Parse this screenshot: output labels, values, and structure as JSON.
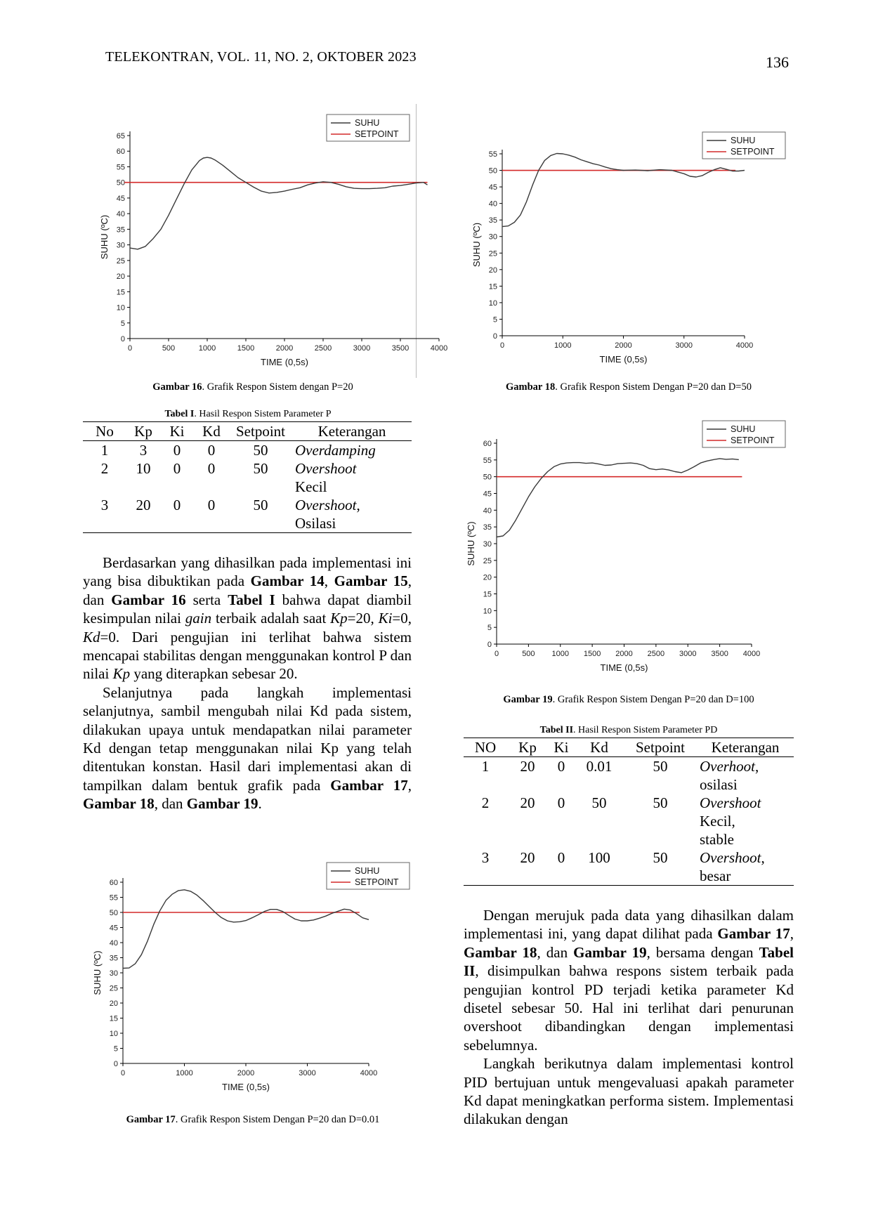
{
  "header": {
    "journal": "TELEKONTRAN, VOL. 11, NO. 2, OKTOBER 2023",
    "page_number": "136"
  },
  "charts": {
    "fig16": {
      "type": "line",
      "xlabel": "TIME (0,5s)",
      "ylabel": "SUHU (ºC)",
      "xlim": [
        0,
        4000
      ],
      "ylim": [
        0,
        65
      ],
      "x_ticks": [
        0,
        500,
        1000,
        1500,
        2000,
        2500,
        3000,
        3500,
        4000
      ],
      "y_ticks": [
        0,
        5,
        10,
        15,
        20,
        25,
        30,
        35,
        40,
        45,
        50,
        55,
        60,
        65
      ],
      "legend": [
        "SUHU",
        "SETPOINT"
      ],
      "setpoint": 50,
      "series": [
        {
          "name": "SUHU",
          "x": [
            0,
            100,
            200,
            300,
            400,
            500,
            600,
            700,
            800,
            900,
            950,
            1000,
            1050,
            1100,
            1200,
            1300,
            1400,
            1500,
            1600,
            1700,
            1800,
            1900,
            2000,
            2100,
            2200,
            2300,
            2400,
            2500,
            2600,
            2700,
            2800,
            2900,
            3000,
            3100,
            3200,
            3300,
            3400,
            3500,
            3600,
            3700,
            3800,
            3850
          ],
          "y": [
            29,
            28.6,
            29.5,
            32,
            35,
            39.5,
            44.5,
            49.5,
            54,
            57,
            57.8,
            58,
            57.8,
            57.2,
            55.5,
            53.5,
            51.5,
            50,
            48.5,
            47.2,
            46.6,
            46.8,
            47.2,
            47.8,
            48.3,
            49.2,
            49.8,
            50.2,
            50,
            49.4,
            48.6,
            48.1,
            48,
            48,
            48.1,
            48.3,
            48.8,
            49,
            49.4,
            49.8,
            50,
            49.2
          ]
        }
      ]
    },
    "fig18": {
      "type": "line",
      "xlabel": "TIME (0,5s)",
      "ylabel": "SUHU (ºC)",
      "xlim": [
        0,
        4000
      ],
      "ylim": [
        0,
        55
      ],
      "x_ticks": [
        0,
        1000,
        2000,
        3000,
        4000
      ],
      "y_ticks": [
        0,
        5,
        10,
        15,
        20,
        25,
        30,
        35,
        40,
        45,
        50,
        55
      ],
      "legend": [
        "SUHU",
        "SETPOINT"
      ],
      "setpoint": 50,
      "series": [
        {
          "name": "SUHU",
          "x": [
            0,
            100,
            200,
            300,
            400,
            500,
            600,
            700,
            800,
            900,
            1000,
            1100,
            1200,
            1300,
            1400,
            1500,
            1600,
            1700,
            1800,
            1900,
            2000,
            2200,
            2400,
            2600,
            2800,
            2900,
            3000,
            3100,
            3200,
            3300,
            3400,
            3500,
            3600,
            3700,
            3800,
            3900,
            4000
          ],
          "y": [
            33,
            33.2,
            34.3,
            36.5,
            40.5,
            45.5,
            50,
            53,
            54.5,
            55.1,
            55,
            54.6,
            54,
            53.2,
            52.6,
            52,
            51.6,
            51,
            50.5,
            50.2,
            50,
            50.1,
            49.9,
            50.2,
            50,
            49.5,
            49,
            48.2,
            48,
            48.4,
            49.4,
            50.2,
            50.8,
            50.3,
            49.8,
            49.8,
            50
          ]
        }
      ]
    },
    "fig19": {
      "type": "line",
      "xlabel": "TIME (0,5s)",
      "ylabel": "SUHU (ºC)",
      "xlim": [
        0,
        4000
      ],
      "ylim": [
        0,
        60
      ],
      "x_ticks": [
        0,
        500,
        1000,
        1500,
        2000,
        2500,
        3000,
        3500,
        4000
      ],
      "y_ticks": [
        0,
        5,
        10,
        15,
        20,
        25,
        30,
        35,
        40,
        45,
        50,
        55,
        60
      ],
      "legend": [
        "SUHU",
        "SETPOINT"
      ],
      "setpoint": 50,
      "series": [
        {
          "name": "SUHU",
          "x": [
            0,
            100,
            200,
            300,
            400,
            500,
            600,
            700,
            800,
            900,
            1000,
            1100,
            1200,
            1300,
            1400,
            1500,
            1600,
            1700,
            1800,
            1900,
            2000,
            2100,
            2200,
            2300,
            2400,
            2500,
            2600,
            2700,
            2800,
            2900,
            3000,
            3100,
            3200,
            3300,
            3400,
            3500,
            3600,
            3700,
            3800
          ],
          "y": [
            32,
            32.3,
            34,
            37,
            40.5,
            44,
            47,
            49.5,
            51.5,
            53,
            53.8,
            54.1,
            54.2,
            54.2,
            54,
            54.1,
            53.8,
            53.4,
            53.5,
            53.9,
            54,
            54.1,
            53.9,
            53.4,
            52.4,
            52.1,
            52.3,
            52,
            51.5,
            51.2,
            52,
            53,
            54.1,
            54.7,
            55.1,
            55.4,
            55.2,
            55.3,
            55.1
          ]
        }
      ]
    },
    "fig17": {
      "type": "line",
      "xlabel": "TIME (0,5s)",
      "ylabel": "SUHU (ºC)",
      "xlim": [
        0,
        4000
      ],
      "ylim": [
        0,
        60
      ],
      "x_ticks": [
        0,
        1000,
        2000,
        3000,
        4000
      ],
      "y_ticks": [
        0,
        5,
        10,
        15,
        20,
        25,
        30,
        35,
        40,
        45,
        50,
        55,
        60
      ],
      "legend": [
        "SUHU",
        "SETPOINT"
      ],
      "setpoint": 50,
      "series": [
        {
          "name": "SUHU",
          "x": [
            0,
            100,
            200,
            300,
            400,
            500,
            600,
            700,
            800,
            900,
            1000,
            1100,
            1200,
            1300,
            1400,
            1500,
            1600,
            1700,
            1800,
            1900,
            2000,
            2100,
            2200,
            2300,
            2400,
            2500,
            2600,
            2700,
            2800,
            2900,
            3000,
            3100,
            3200,
            3300,
            3400,
            3500,
            3600,
            3700,
            3800,
            3900,
            4000
          ],
          "y": [
            31.5,
            31.6,
            33,
            36,
            40.5,
            46,
            50.5,
            54,
            56,
            57.2,
            57.5,
            57,
            55.8,
            54,
            52,
            50,
            48.3,
            47.2,
            46.8,
            46.9,
            47.3,
            48.2,
            49.2,
            50.3,
            51,
            51,
            50.3,
            49,
            47.8,
            47.2,
            47.2,
            47.5,
            48.1,
            48.8,
            49.7,
            50.4,
            51.1,
            50.8,
            49.6,
            48.2,
            47.6
          ]
        }
      ]
    }
  },
  "fig16": {
    "label": "Gambar 16",
    "text": ". Grafik Respon Sistem dengan P=20"
  },
  "fig18": {
    "label": "Gambar 18",
    "text": ". Grafik Respon Sistem Dengan P=20 dan D=50"
  },
  "fig19": {
    "label": "Gambar 19",
    "text": ". Grafik Respon Sistem Dengan P=20 dan D=100"
  },
  "fig17": {
    "label": "Gambar 17",
    "text": ". Grafik Respon Sistem Dengan P=20 dan D=0.01"
  },
  "table1": {
    "label": "Tabel I",
    "text": ". Hasil Respon Sistem Parameter P",
    "headers": [
      "No",
      "Kp",
      "Ki",
      "Kd",
      "Setpoint",
      "Keterangan"
    ],
    "rows": [
      {
        "no": "1",
        "kp": "3",
        "ki": "0",
        "kd": "0",
        "sp": "50",
        "ket": [
          "Overdamping"
        ]
      },
      {
        "no": "2",
        "kp": "10",
        "ki": "0",
        "kd": "0",
        "sp": "50",
        "ket": [
          "Overshoot",
          "Kecil"
        ]
      },
      {
        "no": "3",
        "kp": "20",
        "ki": "0",
        "kd": "0",
        "sp": "50",
        "ket": [
          "Overshoot",
          ",",
          "Osilasi"
        ]
      }
    ]
  },
  "table2": {
    "label": "Tabel II",
    "text": ". Hasil Respon Sistem Parameter PD",
    "headers": [
      "NO",
      "Kp",
      "Ki",
      "Kd",
      "Setpoint",
      "Keterangan"
    ],
    "rows": [
      {
        "no": "1",
        "kp": "20",
        "ki": "0",
        "kd": "0.01",
        "sp": "50",
        "ket": [
          "Overhoot",
          ",",
          "osilasi"
        ]
      },
      {
        "no": "2",
        "kp": "20",
        "ki": "0",
        "kd": "50",
        "sp": "50",
        "ket": [
          "Overshoot",
          "Kecil,",
          "stable"
        ]
      },
      {
        "no": "3",
        "kp": "20",
        "ki": "0",
        "kd": "100",
        "sp": "50",
        "ket": [
          "Overshoot",
          ",",
          "besar"
        ]
      }
    ]
  },
  "para1": {
    "s1": "Berdasarkan yang dihasilkan pada implementasi ini yang bisa dibuktikan pada ",
    "g14": "Gambar 14",
    "c1": ", ",
    "g15": "Gambar 15",
    "c2": ", dan ",
    "g16": "Gambar 16",
    "s2": " serta ",
    "t1": "Tabel I",
    "s3": " bahwa dapat diambil kesimpulan nilai ",
    "gain": "gain",
    "s4": " terbaik adalah saat ",
    "kp": "Kp",
    "kp_val": "=20, ",
    "ki": "Ki",
    "ki_val": "=0, ",
    "kd": "Kd",
    "kd_val": "=0.",
    "s5": " Dari pengujian ini terlihat bahwa sistem mencapai stabilitas dengan menggunakan kontrol P dan nilai ",
    "kp2": "Kp",
    "s6": " yang diterapkan sebesar 20."
  },
  "para2": {
    "s1": "Selanjutnya pada langkah implementasi selanjutnya, sambil mengubah nilai Kd pada sistem, dilakukan upaya untuk mendapatkan nilai parameter Kd dengan tetap menggunakan nilai Kp yang telah ditentukan konstan. Hasil dari implementasi akan di tampilkan dalam bentuk grafik pada ",
    "g17": "Gambar 17",
    "c1": ", ",
    "g18": "Gambar 18",
    "c2": ", dan ",
    "g19": "Gambar 19",
    "end": "."
  },
  "para3": {
    "s1": "Dengan merujuk pada data yang dihasilkan dalam implementasi ini, yang dapat dilihat pada ",
    "g17": "Gambar 17",
    "c1": ", ",
    "g18": "Gambar 18",
    "c2": ", dan ",
    "g19": "Gambar 19",
    "s2": ", bersama dengan ",
    "t2": "Tabel II",
    "s3": ", disimpulkan bahwa respons sistem terbaik pada pengujian kontrol PD terjadi ketika parameter Kd disetel sebesar 50. Hal ini terlihat dari penurunan overshoot dibandingkan dengan implementasi sebelumnya."
  },
  "para4": {
    "s1": "Langkah berikutnya dalam implementasi kontrol PID bertujuan untuk mengevaluasi apakah parameter Kd dapat meningkatkan performa sistem. Implementasi dilakukan dengan"
  },
  "colors": {
    "suhu": "#3a3a3a",
    "setpoint": "#d42a2a"
  }
}
